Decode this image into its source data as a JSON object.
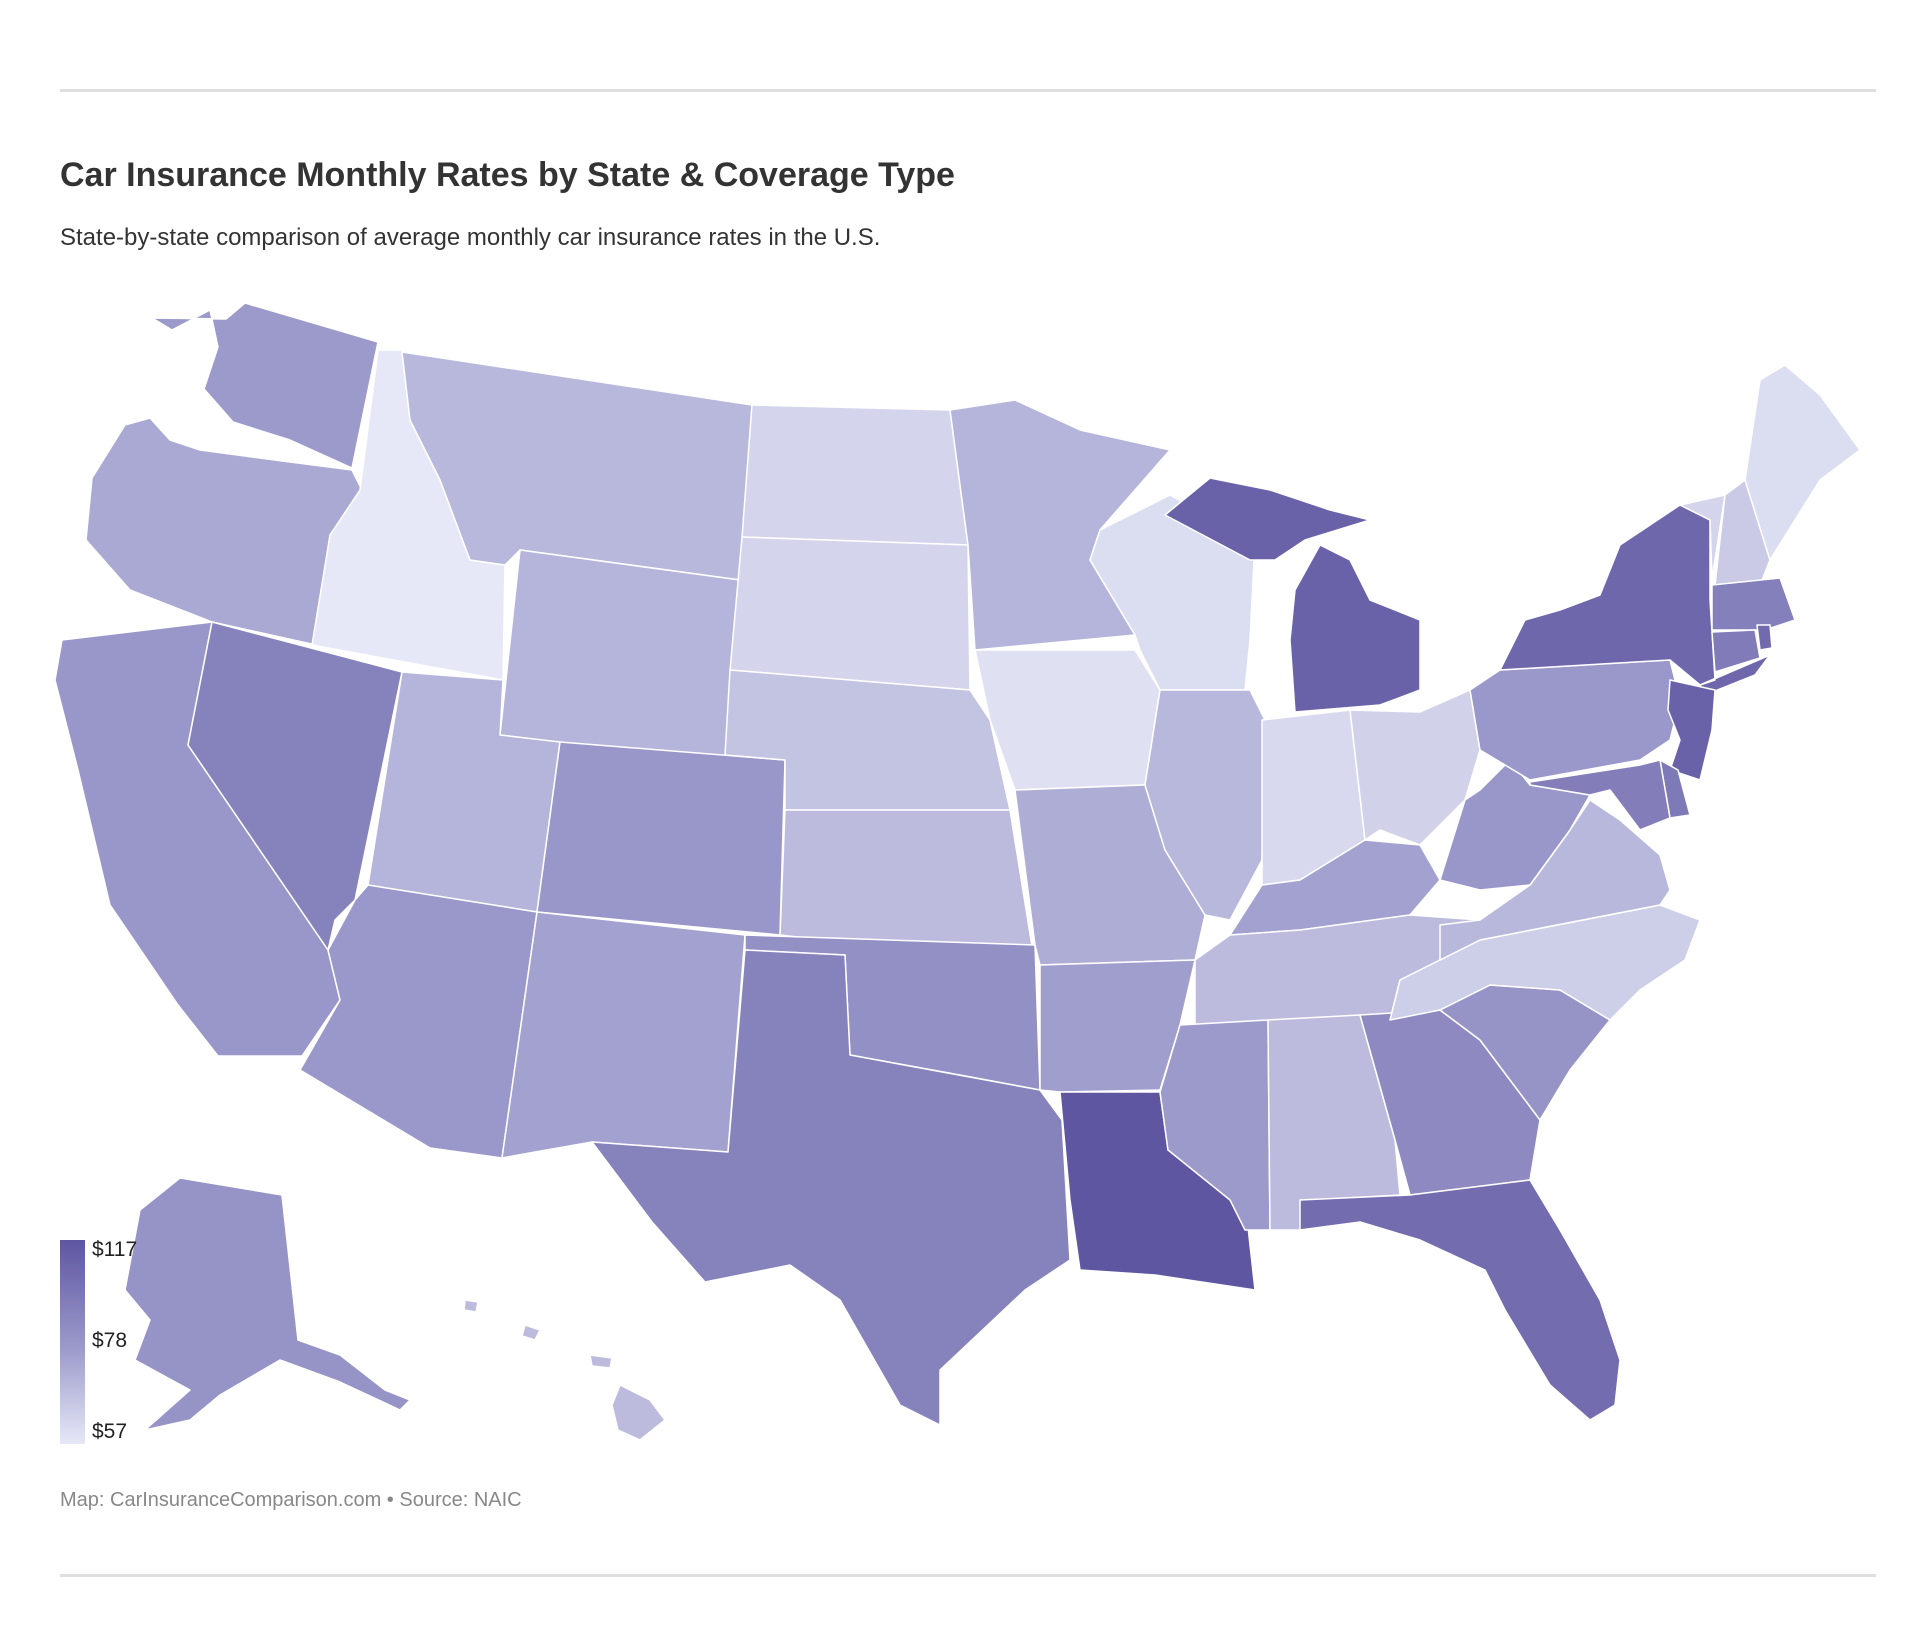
{
  "header": {
    "title": "Car Insurance Monthly Rates by State & Coverage Type",
    "subtitle": "State-by-state comparison of average monthly car insurance rates in the U.S."
  },
  "footer": {
    "credit": "Map: CarInsuranceComparison.com • Source: NAIC"
  },
  "legend": {
    "max_label": "$117",
    "mid_label": "$78",
    "min_label": "$57",
    "max_value": 117,
    "mid_value": 78,
    "min_value": 57,
    "color_high": "#5e56a1",
    "color_mid": "#9c9acb",
    "color_low": "#e6e8f7"
  },
  "states": {
    "WA": 78,
    "OR": 74,
    "CA": 80,
    "NV": 92,
    "ID": 57,
    "MT": 70,
    "WY": 71,
    "UT": 71,
    "AZ": 79,
    "NM": 76,
    "CO": 80,
    "ND": 62,
    "SD": 62,
    "NE": 67,
    "KS": 69,
    "OK": 84,
    "TX": 92,
    "MN": 71,
    "IA": 59,
    "MO": 73,
    "AR": 77,
    "LA": 117,
    "WI": 60,
    "IL": 70,
    "MI": 110,
    "IN": 61,
    "OH": 63,
    "KY": 76,
    "TN": 69,
    "MS": 78,
    "AL": 69,
    "GA": 87,
    "FL": 104,
    "SC": 82,
    "NC": 64,
    "VA": 70,
    "WV": 80,
    "PA": 79,
    "NY": 107,
    "VT": 62,
    "NH": 65,
    "ME": 60,
    "MA": 93,
    "RI": 105,
    "CT": 95,
    "NJ": 110,
    "DE": 97,
    "MD": 94,
    "AK": 82,
    "HI": 69
  }
}
